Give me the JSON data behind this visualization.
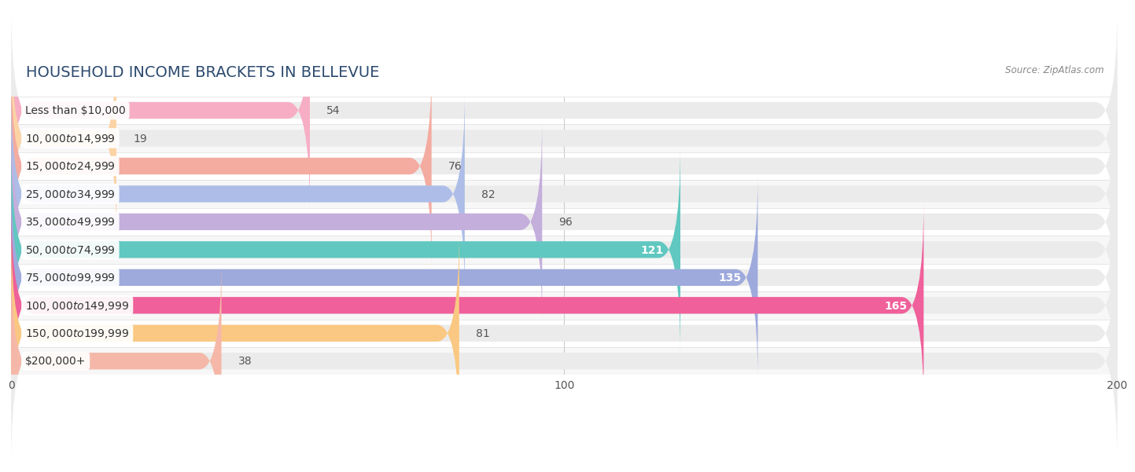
{
  "title": "HOUSEHOLD INCOME BRACKETS IN BELLEVUE",
  "source": "Source: ZipAtlas.com",
  "categories": [
    "Less than $10,000",
    "$10,000 to $14,999",
    "$15,000 to $24,999",
    "$25,000 to $34,999",
    "$35,000 to $49,999",
    "$50,000 to $74,999",
    "$75,000 to $99,999",
    "$100,000 to $149,999",
    "$150,000 to $199,999",
    "$200,000+"
  ],
  "values": [
    54,
    19,
    76,
    82,
    96,
    121,
    135,
    165,
    81,
    38
  ],
  "bar_colors": [
    "#f7aec5",
    "#fbd3a5",
    "#f4aba0",
    "#adbde8",
    "#c4aedc",
    "#60c8c0",
    "#9eaadc",
    "#f0609a",
    "#fac882",
    "#f5b8a8"
  ],
  "xlim": [
    0,
    200
  ],
  "xticks": [
    0,
    100,
    200
  ],
  "background_color": "#ffffff",
  "bar_background_color": "#ebebeb",
  "row_alt_color": "#f7f7f7",
  "title_fontsize": 14,
  "label_fontsize": 10,
  "value_fontsize": 10,
  "bar_height": 0.6,
  "value_threshold": 100
}
